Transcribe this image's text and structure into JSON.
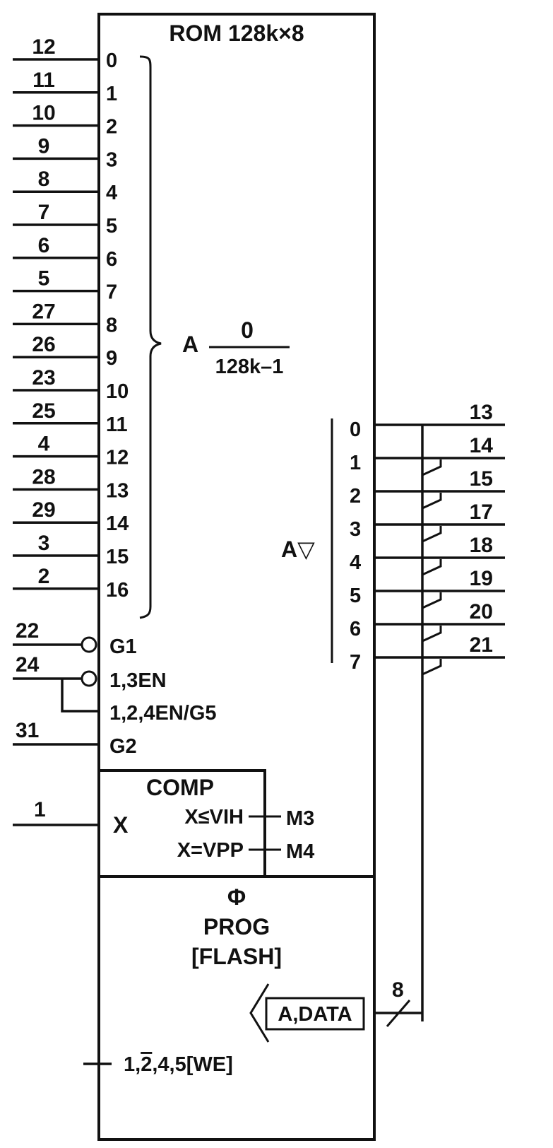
{
  "chip": {
    "title": "ROM 128k×8"
  },
  "address": {
    "inputs": [
      {
        "pin": "12",
        "bit": "0"
      },
      {
        "pin": "11",
        "bit": "1"
      },
      {
        "pin": "10",
        "bit": "2"
      },
      {
        "pin": "9",
        "bit": "3"
      },
      {
        "pin": "8",
        "bit": "4"
      },
      {
        "pin": "7",
        "bit": "5"
      },
      {
        "pin": "6",
        "bit": "6"
      },
      {
        "pin": "5",
        "bit": "7"
      },
      {
        "pin": "27",
        "bit": "8"
      },
      {
        "pin": "26",
        "bit": "9"
      },
      {
        "pin": "23",
        "bit": "10"
      },
      {
        "pin": "25",
        "bit": "11"
      },
      {
        "pin": "4",
        "bit": "12"
      },
      {
        "pin": "28",
        "bit": "13"
      },
      {
        "pin": "29",
        "bit": "14"
      },
      {
        "pin": "3",
        "bit": "15"
      },
      {
        "pin": "2",
        "bit": "16"
      }
    ],
    "group_label": "A",
    "range_top": "0",
    "range_bottom": "128k–1"
  },
  "control": [
    {
      "pin": "22",
      "label": "G1"
    },
    {
      "pin": "24",
      "label": "1,3EN"
    },
    {
      "pin": "",
      "label": "1,2,4EN/G5"
    },
    {
      "pin": "31",
      "label": "G2"
    }
  ],
  "outputs": {
    "group_label": "A▽",
    "bits": [
      {
        "bit": "0",
        "pin": "13"
      },
      {
        "bit": "1",
        "pin": "14"
      },
      {
        "bit": "2",
        "pin": "15"
      },
      {
        "bit": "3",
        "pin": "17"
      },
      {
        "bit": "4",
        "pin": "18"
      },
      {
        "bit": "5",
        "pin": "19"
      },
      {
        "bit": "6",
        "pin": "20"
      },
      {
        "bit": "7",
        "pin": "21"
      }
    ]
  },
  "comparator": {
    "title": "COMP",
    "input_pin": "1",
    "input_label": "X",
    "cond1": "X≤VIH",
    "cond2": "X=VPP",
    "mode1": "M3",
    "mode2": "M4"
  },
  "programming": {
    "symbol": "Φ",
    "line1": "PROG",
    "line2": "[FLASH]",
    "data_label": "A,DATA",
    "bus_width": "8",
    "we_prefix": "1,",
    "we_bar": "2",
    "we_suffix": ",4,5[WE]"
  }
}
